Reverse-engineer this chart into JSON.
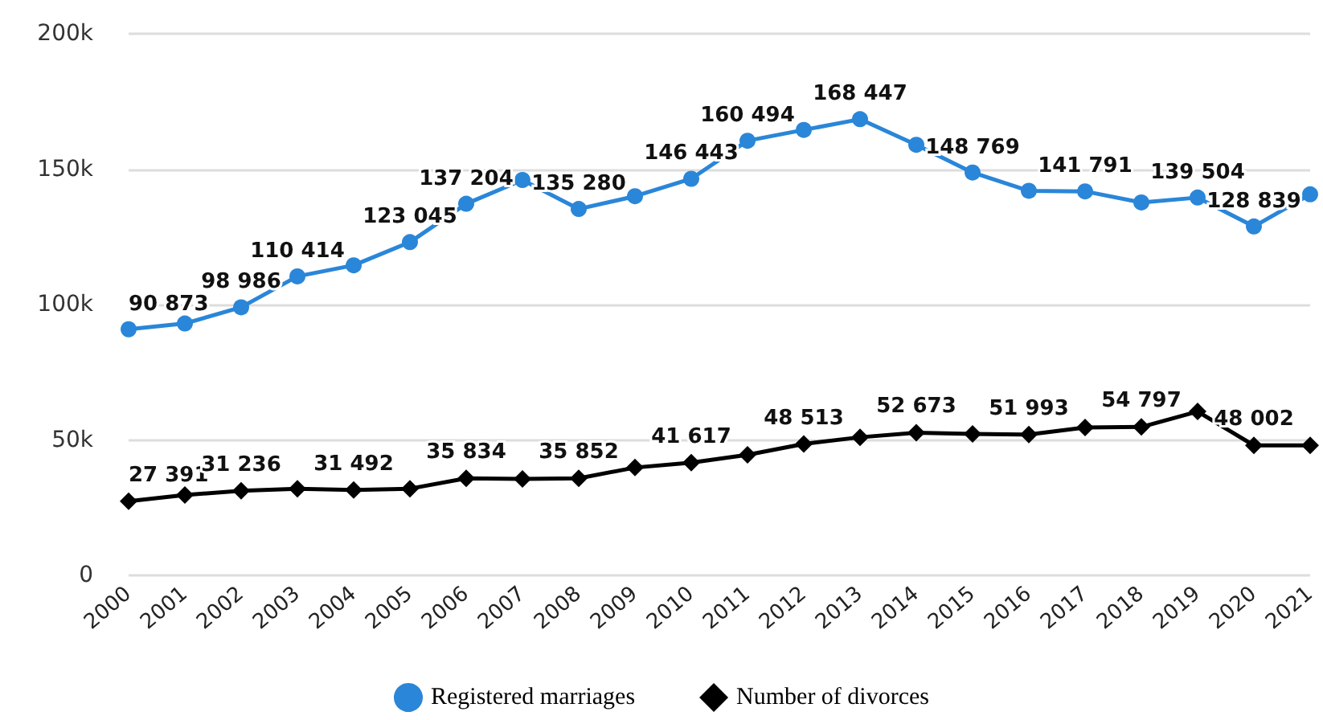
{
  "chart_data": {
    "type": "line",
    "categories": [
      "2000",
      "2001",
      "2002",
      "2003",
      "2004",
      "2005",
      "2006",
      "2007",
      "2008",
      "2009",
      "2010",
      "2011",
      "2012",
      "2013",
      "2014",
      "2015",
      "2016",
      "2017",
      "2018",
      "2019",
      "2020",
      "2021"
    ],
    "series": [
      {
        "name": "Registered marriages",
        "color": "#2a86d8",
        "marker": "circle",
        "values": [
          90873,
          93000,
          98986,
          110414,
          114500,
          123045,
          137204,
          146000,
          135280,
          140000,
          146443,
          160494,
          164500,
          168447,
          159000,
          148769,
          142000,
          141791,
          137700,
          139504,
          128839,
          140700
        ],
        "value_labels": [
          "90 873",
          null,
          "98 986",
          "110 414",
          null,
          "123 045",
          "137 204",
          null,
          "135 280",
          null,
          "146 443",
          "160 494",
          null,
          "168 447",
          null,
          "148 769",
          null,
          "141 791",
          null,
          "139 504",
          "128 839",
          null
        ]
      },
      {
        "name": "Number of divorces",
        "color": "#000000",
        "marker": "diamond",
        "values": [
          27391,
          29700,
          31236,
          32000,
          31492,
          32000,
          35834,
          35600,
          35852,
          39800,
          41617,
          44500,
          48513,
          51000,
          52673,
          52200,
          51993,
          54600,
          54797,
          60500,
          48002,
          48000
        ],
        "value_labels": [
          "27 391",
          null,
          "31 236",
          null,
          "31 492",
          null,
          "35 834",
          null,
          "35 852",
          null,
          "41 617",
          null,
          "48 513",
          null,
          "52 673",
          null,
          "51 993",
          null,
          "54 797",
          null,
          "48 002",
          null
        ]
      }
    ],
    "ylim": [
      0,
      200000
    ],
    "yticks": [
      {
        "value": 0,
        "label": "0"
      },
      {
        "value": 50000,
        "label": "50k"
      },
      {
        "value": 100000,
        "label": "100k"
      },
      {
        "value": 150000,
        "label": "150k"
      },
      {
        "value": 200000,
        "label": "200k"
      }
    ],
    "grid": "y",
    "legend": "bottom",
    "line_style": "solid"
  }
}
